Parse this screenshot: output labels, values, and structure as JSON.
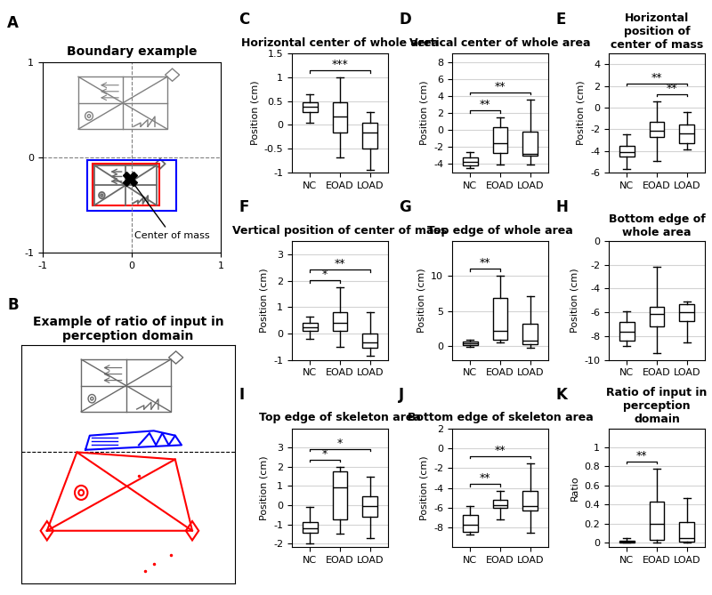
{
  "chart_data": [
    {
      "type": "diagram",
      "panel_label": "A",
      "title": "Boundary example",
      "xlim": [
        -1,
        1
      ],
      "ylim": [
        -1,
        1
      ],
      "xticks": [
        -1,
        0,
        1
      ],
      "yticks": [
        -1,
        0,
        1
      ],
      "annotation": "Center of mass"
    },
    {
      "type": "diagram",
      "panel_label": "B",
      "title": "Example of ratio of input in perception domain"
    },
    {
      "type": "box",
      "panel_label": "C",
      "title": "Horizontal center of whole area",
      "ylabel": "Position (cm)",
      "categories": [
        "NC",
        "EOAD",
        "LOAD"
      ],
      "boxes": [
        {
          "whislo": 0.05,
          "q1": 0.28,
          "med": 0.38,
          "q3": 0.48,
          "whishi": 0.65
        },
        {
          "whislo": -0.68,
          "q1": -0.15,
          "med": 0.18,
          "q3": 0.48,
          "whishi": 1.0
        },
        {
          "whislo": -0.95,
          "q1": -0.5,
          "med": -0.15,
          "q3": 0.05,
          "whishi": 0.28
        }
      ],
      "ylim": [
        -1,
        1.5
      ],
      "yticks": [
        -1,
        -0.5,
        0,
        0.5,
        1,
        1.5
      ],
      "grid": true,
      "significance": [
        {
          "from": "NC",
          "to": "LOAD",
          "label": "***"
        }
      ]
    },
    {
      "type": "box",
      "panel_label": "D",
      "title": "Vertical center of whole area",
      "ylabel": "Position (cm)",
      "categories": [
        "NC",
        "EOAD",
        "LOAD"
      ],
      "boxes": [
        {
          "whislo": -4.5,
          "q1": -4.2,
          "med": -3.7,
          "q3": -3.2,
          "whishi": -2.6
        },
        {
          "whislo": -4.1,
          "q1": -2.7,
          "med": -1.5,
          "q3": 0.3,
          "whishi": 1.5
        },
        {
          "whislo": -4.1,
          "q1": -3.0,
          "med": -2.8,
          "q3": -0.2,
          "whishi": 3.6
        }
      ],
      "ylim": [
        -5,
        9
      ],
      "yticks": [
        -4,
        -2,
        0,
        2,
        4,
        6,
        8
      ],
      "grid": true,
      "significance": [
        {
          "from": "NC",
          "to": "EOAD",
          "label": "**"
        },
        {
          "from": "NC",
          "to": "LOAD",
          "label": "**"
        }
      ]
    },
    {
      "type": "box",
      "panel_label": "E",
      "title": "Horizontal position of center of mass",
      "ylabel": "Position (cm)",
      "categories": [
        "NC",
        "EOAD",
        "LOAD"
      ],
      "boxes": [
        {
          "whislo": -5.7,
          "q1": -4.5,
          "med": -4.1,
          "q3": -3.5,
          "whishi": -2.5
        },
        {
          "whislo": -4.9,
          "q1": -2.7,
          "med": -2.1,
          "q3": -1.3,
          "whishi": 0.6
        },
        {
          "whislo": -3.9,
          "q1": -3.3,
          "med": -2.4,
          "q3": -1.6,
          "whishi": -0.4
        }
      ],
      "ylim": [
        -6,
        5
      ],
      "yticks": [
        -6,
        -4,
        -2,
        0,
        2,
        4
      ],
      "grid": true,
      "significance": [
        {
          "from": "NC",
          "to": "LOAD",
          "label": "**"
        },
        {
          "from": "EOAD",
          "to": "LOAD",
          "label": "**"
        }
      ]
    },
    {
      "type": "box",
      "panel_label": "F",
      "title": "Vertical position of center of mass",
      "ylabel": "Position (cm)",
      "categories": [
        "NC",
        "EOAD",
        "LOAD"
      ],
      "boxes": [
        {
          "whislo": -0.2,
          "q1": 0.1,
          "med": 0.25,
          "q3": 0.4,
          "whishi": 0.65
        },
        {
          "whislo": -0.5,
          "q1": 0.1,
          "med": 0.4,
          "q3": 0.8,
          "whishi": 1.75
        },
        {
          "whislo": -0.85,
          "q1": -0.55,
          "med": -0.35,
          "q3": 0.0,
          "whishi": 0.8
        }
      ],
      "ylim": [
        -1,
        3.5
      ],
      "yticks": [
        -1,
        0,
        1,
        2,
        3
      ],
      "grid": true,
      "significance": [
        {
          "from": "NC",
          "to": "EOAD",
          "label": "*"
        },
        {
          "from": "NC",
          "to": "LOAD",
          "label": "**"
        }
      ]
    },
    {
      "type": "box",
      "panel_label": "G",
      "title": "Top edge of whole area",
      "ylabel": "Position (cm)",
      "categories": [
        "NC",
        "EOAD",
        "LOAD"
      ],
      "boxes": [
        {
          "whislo": -0.1,
          "q1": 0.1,
          "med": 0.35,
          "q3": 0.6,
          "whishi": 0.9
        },
        {
          "whislo": 0.5,
          "q1": 0.9,
          "med": 2.2,
          "q3": 6.8,
          "whishi": 10.0
        },
        {
          "whislo": -0.3,
          "q1": 0.3,
          "med": 0.8,
          "q3": 3.2,
          "whishi": 7.1
        }
      ],
      "ylim": [
        -2,
        15
      ],
      "yticks": [
        0,
        5,
        10
      ],
      "grid": true,
      "significance": [
        {
          "from": "NC",
          "to": "EOAD",
          "label": "**"
        }
      ]
    },
    {
      "type": "box",
      "panel_label": "H",
      "title": "Bottom edge of whole area",
      "ylabel": "Position (cm)",
      "categories": [
        "NC",
        "EOAD",
        "LOAD"
      ],
      "boxes": [
        {
          "whislo": -8.8,
          "q1": -8.4,
          "med": -7.6,
          "q3": -6.8,
          "whishi": -5.9
        },
        {
          "whislo": -9.4,
          "q1": -7.2,
          "med": -6.1,
          "q3": -5.5,
          "whishi": -2.2
        },
        {
          "whislo": -8.5,
          "q1": -6.7,
          "med": -6.0,
          "q3": -5.3,
          "whishi": -5.1
        }
      ],
      "ylim": [
        -10,
        0
      ],
      "yticks": [
        -10,
        -8,
        -6,
        -4,
        -2,
        0
      ],
      "grid": true,
      "significance": []
    },
    {
      "type": "box",
      "panel_label": "I",
      "title": "Top edge of skeleton area",
      "ylabel": "Position (cm)",
      "categories": [
        "NC",
        "EOAD",
        "LOAD"
      ],
      "boxes": [
        {
          "whislo": -2.0,
          "q1": -1.45,
          "med": -1.2,
          "q3": -0.9,
          "whishi": -0.1
        },
        {
          "whislo": -1.5,
          "q1": -0.75,
          "med": 0.95,
          "q3": 1.75,
          "whishi": 2.0
        },
        {
          "whislo": -1.7,
          "q1": -0.6,
          "med": -0.05,
          "q3": 0.45,
          "whishi": 1.5
        }
      ],
      "ylim": [
        -2.2,
        4
      ],
      "yticks": [
        -2,
        -1,
        0,
        1,
        2,
        3
      ],
      "grid": true,
      "significance": [
        {
          "from": "NC",
          "to": "EOAD",
          "label": "*"
        },
        {
          "from": "NC",
          "to": "LOAD",
          "label": "*"
        }
      ]
    },
    {
      "type": "box",
      "panel_label": "J",
      "title": "Bottom edge of skeleton area",
      "ylabel": "Position (cm)",
      "categories": [
        "NC",
        "EOAD",
        "LOAD"
      ],
      "boxes": [
        {
          "whislo": -8.7,
          "q1": -8.4,
          "med": -7.7,
          "q3": -6.7,
          "whishi": -5.8
        },
        {
          "whislo": -7.2,
          "q1": -6.0,
          "med": -5.7,
          "q3": -5.2,
          "whishi": -4.3
        },
        {
          "whislo": -8.5,
          "q1": -6.3,
          "med": -5.8,
          "q3": -4.3,
          "whishi": -1.5
        }
      ],
      "ylim": [
        -10,
        2
      ],
      "yticks": [
        -8,
        -6,
        -4,
        -2,
        0,
        2
      ],
      "grid": true,
      "significance": [
        {
          "from": "NC",
          "to": "EOAD",
          "label": "**"
        },
        {
          "from": "NC",
          "to": "LOAD",
          "label": "**"
        }
      ]
    },
    {
      "type": "box",
      "panel_label": "K",
      "title": "Ratio of input in perception domain",
      "ylabel": "Ratio",
      "categories": [
        "NC",
        "EOAD",
        "LOAD"
      ],
      "boxes": [
        {
          "whislo": 0.0,
          "q1": 0.005,
          "med": 0.01,
          "q3": 0.02,
          "whishi": 0.05
        },
        {
          "whislo": 0.0,
          "q1": 0.03,
          "med": 0.2,
          "q3": 0.43,
          "whishi": 0.78
        },
        {
          "whislo": 0.0,
          "q1": 0.01,
          "med": 0.05,
          "q3": 0.22,
          "whishi": 0.47
        }
      ],
      "ylim": [
        -0.05,
        1.2
      ],
      "yticks": [
        0,
        0.2,
        0.4,
        0.6,
        0.8,
        1
      ],
      "grid": true,
      "significance": [
        {
          "from": "NC",
          "to": "EOAD",
          "label": "**"
        }
      ]
    }
  ]
}
